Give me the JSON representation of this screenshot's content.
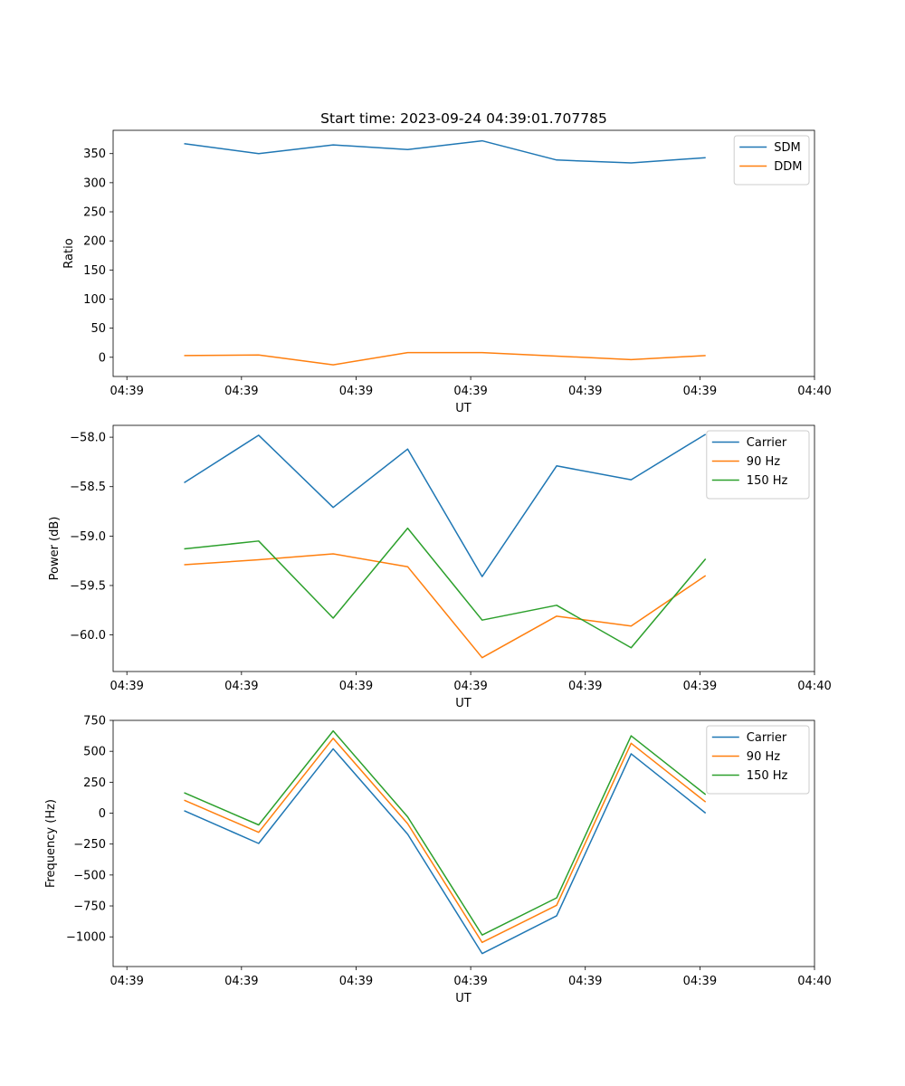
{
  "title": "Start time: 2023-09-24 04:39:01.707785",
  "chart_data": [
    {
      "type": "line",
      "title": "Start time: 2023-09-24 04:39:01.707785",
      "xlabel": "UT",
      "ylabel": "Ratio",
      "x_tick_labels": [
        "04:39",
        "04:39",
        "04:39",
        "04:39",
        "04:39",
        "04:39",
        "04:40"
      ],
      "x_tick_positions": [
        0,
        1,
        2,
        3,
        4,
        5,
        6
      ],
      "xlim": [
        -0.12,
        6.0
      ],
      "x": [
        0.5,
        1.15,
        1.8,
        2.45,
        3.1,
        3.75,
        4.4,
        5.05
      ],
      "ylim": [
        -33,
        390
      ],
      "y_ticks": [
        0,
        50,
        100,
        150,
        200,
        250,
        300,
        350
      ],
      "y_tick_labels": [
        "0",
        "50",
        "100",
        "150",
        "200",
        "250",
        "300",
        "350"
      ],
      "legend_position": "top-right",
      "series": [
        {
          "name": "SDM",
          "color": "#1f77b4",
          "values": [
            367,
            350,
            365,
            357,
            372,
            339,
            334,
            343
          ]
        },
        {
          "name": "DDM",
          "color": "#ff7f0e",
          "values": [
            3,
            4,
            -13,
            8,
            8,
            2,
            -4,
            3
          ]
        }
      ]
    },
    {
      "type": "line",
      "title": "",
      "xlabel": "UT",
      "ylabel": "Power (dB)",
      "x_tick_labels": [
        "04:39",
        "04:39",
        "04:39",
        "04:39",
        "04:39",
        "04:39",
        "04:40"
      ],
      "x_tick_positions": [
        0,
        1,
        2,
        3,
        4,
        5,
        6
      ],
      "xlim": [
        -0.12,
        6.0
      ],
      "x": [
        0.5,
        1.15,
        1.8,
        2.45,
        3.1,
        3.75,
        4.4,
        5.05
      ],
      "ylim": [
        -60.37,
        -57.88
      ],
      "y_ticks": [
        -60.0,
        -59.5,
        -59.0,
        -58.5,
        -58.0
      ],
      "y_tick_labels": [
        "−60.0",
        "−59.5",
        "−59.0",
        "−58.5",
        "−58.0"
      ],
      "legend_position": "top-right",
      "series": [
        {
          "name": "Carrier",
          "color": "#1f77b4",
          "values": [
            -58.46,
            -57.98,
            -58.71,
            -58.12,
            -59.41,
            -58.29,
            -58.43,
            -57.97
          ]
        },
        {
          "name": "90 Hz",
          "color": "#ff7f0e",
          "values": [
            -59.29,
            -59.24,
            -59.18,
            -59.31,
            -60.23,
            -59.81,
            -59.91,
            -59.4
          ]
        },
        {
          "name": "150 Hz",
          "color": "#2ca02c",
          "values": [
            -59.13,
            -59.05,
            -59.83,
            -58.92,
            -59.85,
            -59.7,
            -60.13,
            -59.23
          ]
        }
      ]
    },
    {
      "type": "line",
      "title": "",
      "xlabel": "UT",
      "ylabel": "Frequency (Hz)",
      "x_tick_labels": [
        "04:39",
        "04:39",
        "04:39",
        "04:39",
        "04:39",
        "04:39",
        "04:40"
      ],
      "x_tick_positions": [
        0,
        1,
        2,
        3,
        4,
        5,
        6
      ],
      "xlim": [
        -0.12,
        6.0
      ],
      "x": [
        0.5,
        1.15,
        1.8,
        2.45,
        3.1,
        3.75,
        4.4,
        5.05
      ],
      "ylim": [
        -1240,
        750
      ],
      "y_ticks": [
        -1000,
        -750,
        -500,
        -250,
        0,
        250,
        500,
        750
      ],
      "y_tick_labels": [
        "−1000",
        "−750",
        "−500",
        "−250",
        "0",
        "250",
        "500",
        "750"
      ],
      "legend_position": "top-right",
      "series": [
        {
          "name": "Carrier",
          "color": "#1f77b4",
          "values": [
            20,
            -245,
            520,
            -170,
            -1135,
            -830,
            480,
            0
          ]
        },
        {
          "name": "90 Hz",
          "color": "#ff7f0e",
          "values": [
            105,
            -155,
            605,
            -85,
            -1045,
            -745,
            565,
            90
          ]
        },
        {
          "name": "150 Hz",
          "color": "#2ca02c",
          "values": [
            165,
            -95,
            665,
            -30,
            -985,
            -685,
            625,
            150
          ]
        }
      ]
    }
  ]
}
